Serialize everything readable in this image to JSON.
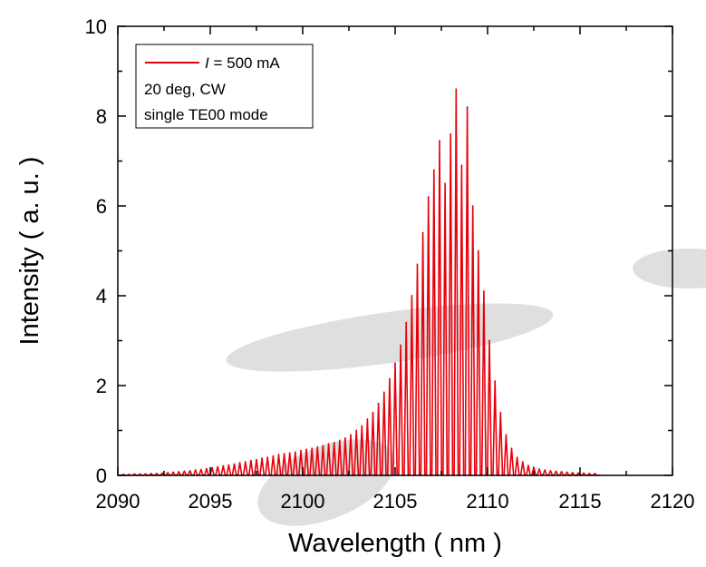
{
  "chart_data": {
    "type": "line",
    "title": "",
    "xlabel": "Wavelength ( nm )",
    "ylabel": "Intensity ( a. u. )",
    "xlim": [
      2090,
      2120
    ],
    "ylim": [
      0,
      10
    ],
    "x_ticks": [
      2090,
      2095,
      2100,
      2105,
      2110,
      2115,
      2120
    ],
    "y_ticks": [
      0,
      2,
      4,
      6,
      8,
      10
    ],
    "grid": false,
    "legend_position": "top-left",
    "legend": {
      "series_label_italic": "I",
      "series_label_rest": " = 500 mA",
      "line2": "20 deg, CW",
      "line3": "single TE00 mode"
    },
    "colors": {
      "series": "#e8000b",
      "watermark": "#d9d9d9"
    },
    "series": [
      {
        "peaks": [
          {
            "x": 2090.3,
            "y": 0.02
          },
          {
            "x": 2090.6,
            "y": 0.02
          },
          {
            "x": 2090.9,
            "y": 0.03
          },
          {
            "x": 2091.2,
            "y": 0.03
          },
          {
            "x": 2091.5,
            "y": 0.03
          },
          {
            "x": 2091.8,
            "y": 0.04
          },
          {
            "x": 2092.1,
            "y": 0.04
          },
          {
            "x": 2092.4,
            "y": 0.05
          },
          {
            "x": 2092.7,
            "y": 0.06
          },
          {
            "x": 2093.0,
            "y": 0.07
          },
          {
            "x": 2093.3,
            "y": 0.08
          },
          {
            "x": 2093.6,
            "y": 0.09
          },
          {
            "x": 2093.9,
            "y": 0.1
          },
          {
            "x": 2094.2,
            "y": 0.12
          },
          {
            "x": 2094.5,
            "y": 0.13
          },
          {
            "x": 2094.8,
            "y": 0.15
          },
          {
            "x": 2095.1,
            "y": 0.17
          },
          {
            "x": 2095.4,
            "y": 0.19
          },
          {
            "x": 2095.7,
            "y": 0.21
          },
          {
            "x": 2096.0,
            "y": 0.23
          },
          {
            "x": 2096.3,
            "y": 0.25
          },
          {
            "x": 2096.6,
            "y": 0.28
          },
          {
            "x": 2096.9,
            "y": 0.3
          },
          {
            "x": 2097.2,
            "y": 0.33
          },
          {
            "x": 2097.5,
            "y": 0.35
          },
          {
            "x": 2097.8,
            "y": 0.38
          },
          {
            "x": 2098.1,
            "y": 0.4
          },
          {
            "x": 2098.4,
            "y": 0.43
          },
          {
            "x": 2098.7,
            "y": 0.46
          },
          {
            "x": 2099.0,
            "y": 0.48
          },
          {
            "x": 2099.3,
            "y": 0.5
          },
          {
            "x": 2099.6,
            "y": 0.52
          },
          {
            "x": 2099.9,
            "y": 0.55
          },
          {
            "x": 2100.2,
            "y": 0.58
          },
          {
            "x": 2100.5,
            "y": 0.6
          },
          {
            "x": 2100.8,
            "y": 0.63
          },
          {
            "x": 2101.1,
            "y": 0.66
          },
          {
            "x": 2101.4,
            "y": 0.7
          },
          {
            "x": 2101.7,
            "y": 0.73
          },
          {
            "x": 2102.0,
            "y": 0.78
          },
          {
            "x": 2102.3,
            "y": 0.83
          },
          {
            "x": 2102.6,
            "y": 0.9
          },
          {
            "x": 2102.9,
            "y": 1.0
          },
          {
            "x": 2103.2,
            "y": 1.1
          },
          {
            "x": 2103.5,
            "y": 1.25
          },
          {
            "x": 2103.8,
            "y": 1.4
          },
          {
            "x": 2104.1,
            "y": 1.6
          },
          {
            "x": 2104.4,
            "y": 1.85
          },
          {
            "x": 2104.7,
            "y": 2.15
          },
          {
            "x": 2105.0,
            "y": 2.5
          },
          {
            "x": 2105.3,
            "y": 2.9
          },
          {
            "x": 2105.6,
            "y": 3.4
          },
          {
            "x": 2105.9,
            "y": 4.0
          },
          {
            "x": 2106.2,
            "y": 4.7
          },
          {
            "x": 2106.5,
            "y": 5.4
          },
          {
            "x": 2106.8,
            "y": 6.2
          },
          {
            "x": 2107.1,
            "y": 6.8
          },
          {
            "x": 2107.4,
            "y": 7.45
          },
          {
            "x": 2107.7,
            "y": 6.5
          },
          {
            "x": 2108.0,
            "y": 7.6
          },
          {
            "x": 2108.3,
            "y": 8.6
          },
          {
            "x": 2108.6,
            "y": 6.9
          },
          {
            "x": 2108.9,
            "y": 8.2
          },
          {
            "x": 2109.2,
            "y": 6.0
          },
          {
            "x": 2109.5,
            "y": 5.0
          },
          {
            "x": 2109.8,
            "y": 4.1
          },
          {
            "x": 2110.1,
            "y": 3.0
          },
          {
            "x": 2110.4,
            "y": 2.1
          },
          {
            "x": 2110.7,
            "y": 1.4
          },
          {
            "x": 2111.0,
            "y": 0.9
          },
          {
            "x": 2111.3,
            "y": 0.6
          },
          {
            "x": 2111.6,
            "y": 0.4
          },
          {
            "x": 2111.9,
            "y": 0.3
          },
          {
            "x": 2112.2,
            "y": 0.22
          },
          {
            "x": 2112.5,
            "y": 0.18
          },
          {
            "x": 2112.8,
            "y": 0.14
          },
          {
            "x": 2113.1,
            "y": 0.12
          },
          {
            "x": 2113.4,
            "y": 0.1
          },
          {
            "x": 2113.7,
            "y": 0.09
          },
          {
            "x": 2114.0,
            "y": 0.08
          },
          {
            "x": 2114.3,
            "y": 0.07
          },
          {
            "x": 2114.6,
            "y": 0.06
          },
          {
            "x": 2114.9,
            "y": 0.05
          },
          {
            "x": 2115.2,
            "y": 0.05
          },
          {
            "x": 2115.5,
            "y": 0.04
          },
          {
            "x": 2115.8,
            "y": 0.04
          }
        ]
      }
    ]
  }
}
